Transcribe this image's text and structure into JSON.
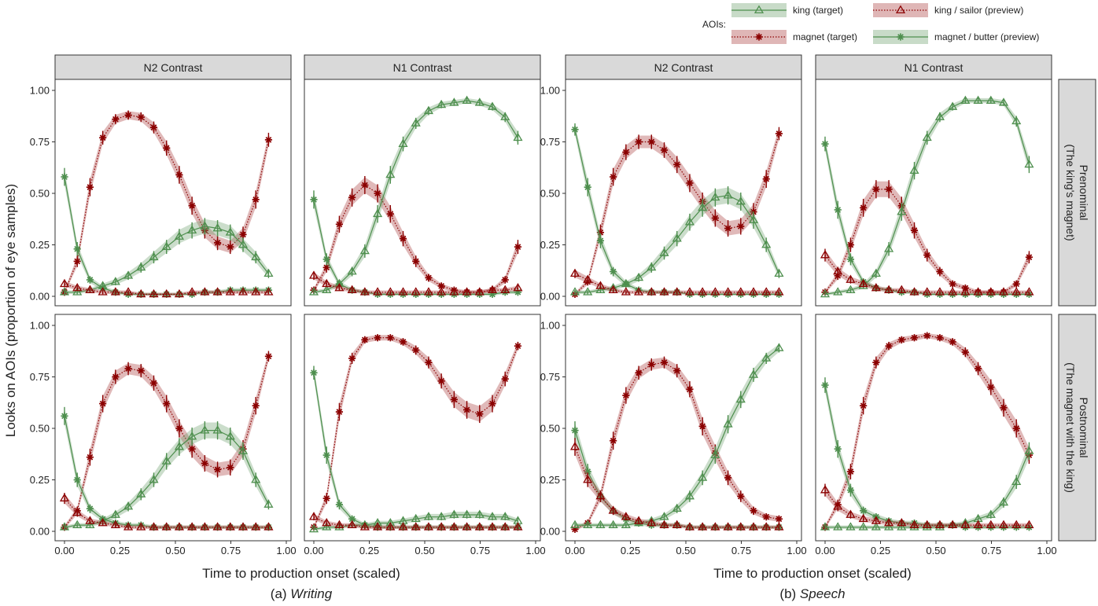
{
  "legend": {
    "title": "AOIs:",
    "items": [
      {
        "label": "king (target)",
        "color": "#4E8F4E",
        "marker": "triangle",
        "linestyle": "solid"
      },
      {
        "label": "king / sailor (preview)",
        "color": "#8B0000",
        "marker": "triangle",
        "linestyle": "dotted"
      },
      {
        "label": "magnet (target)",
        "color": "#8B0000",
        "marker": "asterisk",
        "linestyle": "dotted"
      },
      {
        "label": "magnet / butter (preview)",
        "color": "#4E8F4E",
        "marker": "asterisk",
        "linestyle": "solid"
      }
    ]
  },
  "col_strips": [
    "N2 Contrast",
    "N1 Contrast",
    "N2 Contrast",
    "N1 Contrast"
  ],
  "row_strips": [
    [
      "Prenominal",
      "(The king's magnet)"
    ],
    [
      "Postnominal",
      "(The magnet with the king)"
    ]
  ],
  "y_axis_label": "Looks on AOIs (proportion of eye samples)",
  "x_axis_label": "Time to production onset (scaled)",
  "x_ticks": [
    "0.00",
    "0.25",
    "0.50",
    "0.75",
    "1.00"
  ],
  "y_ticks": [
    "0.00",
    "0.25",
    "0.50",
    "0.75",
    "1.00"
  ],
  "captions": [
    {
      "prefix": "(a) ",
      "name": "Writing"
    },
    {
      "prefix": "(b) ",
      "name": "Speech"
    }
  ],
  "chart_data": {
    "type": "line",
    "xlim": [
      0,
      1
    ],
    "ylim": [
      0,
      1
    ],
    "grid": false,
    "legend_position": "top-right",
    "x": [
      0,
      0.0575,
      0.115,
      0.1725,
      0.23,
      0.2875,
      0.345,
      0.4025,
      0.46,
      0.5175,
      0.575,
      0.6325,
      0.69,
      0.7475,
      0.805,
      0.8625,
      0.92
    ],
    "panels": [
      {
        "group": "Writing",
        "row": "Prenominal",
        "col": "N2 Contrast",
        "series": [
          {
            "name": "king (target)",
            "values": [
              0.02,
              0.02,
              0.03,
              0.05,
              0.07,
              0.1,
              0.14,
              0.19,
              0.24,
              0.29,
              0.32,
              0.34,
              0.33,
              0.31,
              0.25,
              0.19,
              0.11
            ]
          },
          {
            "name": "king / sailor (preview)",
            "values": [
              0.06,
              0.04,
              0.03,
              0.02,
              0.02,
              0.02,
              0.01,
              0.01,
              0.01,
              0.01,
              0.02,
              0.02,
              0.02,
              0.02,
              0.02,
              0.02,
              0.02
            ]
          },
          {
            "name": "magnet (target)",
            "values": [
              0.02,
              0.17,
              0.53,
              0.77,
              0.86,
              0.88,
              0.87,
              0.82,
              0.72,
              0.59,
              0.44,
              0.32,
              0.26,
              0.24,
              0.3,
              0.47,
              0.76
            ]
          },
          {
            "name": "magnet / butter (preview)",
            "values": [
              0.58,
              0.23,
              0.08,
              0.04,
              0.02,
              0.01,
              0.01,
              0.01,
              0.01,
              0.01,
              0.01,
              0.02,
              0.02,
              0.03,
              0.03,
              0.03,
              0.03
            ]
          }
        ]
      },
      {
        "group": "Writing",
        "row": "Prenominal",
        "col": "N1 Contrast",
        "series": [
          {
            "name": "king (target)",
            "values": [
              0.02,
              0.03,
              0.06,
              0.12,
              0.22,
              0.4,
              0.59,
              0.74,
              0.84,
              0.9,
              0.93,
              0.94,
              0.95,
              0.94,
              0.92,
              0.87,
              0.77
            ]
          },
          {
            "name": "king / sailor (preview)",
            "values": [
              0.1,
              0.06,
              0.04,
              0.03,
              0.02,
              0.02,
              0.02,
              0.02,
              0.02,
              0.02,
              0.02,
              0.02,
              0.02,
              0.02,
              0.03,
              0.03,
              0.04
            ]
          },
          {
            "name": "magnet (target)",
            "values": [
              0.03,
              0.14,
              0.35,
              0.48,
              0.54,
              0.5,
              0.4,
              0.28,
              0.17,
              0.09,
              0.05,
              0.03,
              0.02,
              0.02,
              0.03,
              0.08,
              0.24
            ]
          },
          {
            "name": "magnet / butter (preview)",
            "values": [
              0.47,
              0.18,
              0.06,
              0.03,
              0.02,
              0.01,
              0.01,
              0.01,
              0.01,
              0.01,
              0.01,
              0.01,
              0.01,
              0.01,
              0.01,
              0.02,
              0.02
            ]
          }
        ]
      },
      {
        "group": "Speech",
        "row": "Prenominal",
        "col": "N2 Contrast",
        "series": [
          {
            "name": "king (target)",
            "values": [
              0.02,
              0.02,
              0.03,
              0.04,
              0.06,
              0.09,
              0.14,
              0.21,
              0.28,
              0.36,
              0.43,
              0.48,
              0.49,
              0.46,
              0.37,
              0.25,
              0.11
            ]
          },
          {
            "name": "king / sailor (preview)",
            "values": [
              0.11,
              0.08,
              0.05,
              0.03,
              0.02,
              0.02,
              0.02,
              0.02,
              0.02,
              0.02,
              0.02,
              0.02,
              0.02,
              0.02,
              0.02,
              0.02,
              0.02
            ]
          },
          {
            "name": "magnet (target)",
            "values": [
              0.01,
              0.07,
              0.31,
              0.58,
              0.7,
              0.75,
              0.75,
              0.71,
              0.64,
              0.55,
              0.46,
              0.38,
              0.33,
              0.34,
              0.41,
              0.57,
              0.79
            ]
          },
          {
            "name": "magnet / butter (preview)",
            "values": [
              0.81,
              0.53,
              0.27,
              0.12,
              0.06,
              0.03,
              0.02,
              0.02,
              0.02,
              0.01,
              0.01,
              0.01,
              0.01,
              0.01,
              0.01,
              0.01,
              0.01
            ]
          }
        ]
      },
      {
        "group": "Speech",
        "row": "Prenominal",
        "col": "N1 Contrast",
        "series": [
          {
            "name": "king (target)",
            "values": [
              0.01,
              0.02,
              0.03,
              0.05,
              0.11,
              0.23,
              0.41,
              0.61,
              0.77,
              0.87,
              0.92,
              0.95,
              0.95,
              0.95,
              0.94,
              0.85,
              0.64
            ]
          },
          {
            "name": "king / sailor (preview)",
            "values": [
              0.2,
              0.12,
              0.08,
              0.06,
              0.04,
              0.03,
              0.03,
              0.02,
              0.02,
              0.02,
              0.02,
              0.02,
              0.02,
              0.02,
              0.02,
              0.02,
              0.02
            ]
          },
          {
            "name": "magnet (target)",
            "values": [
              0.02,
              0.1,
              0.25,
              0.43,
              0.52,
              0.52,
              0.44,
              0.32,
              0.2,
              0.12,
              0.06,
              0.04,
              0.02,
              0.02,
              0.02,
              0.06,
              0.19
            ]
          },
          {
            "name": "magnet / butter (preview)",
            "values": [
              0.74,
              0.42,
              0.18,
              0.07,
              0.04,
              0.03,
              0.02,
              0.02,
              0.01,
              0.01,
              0.01,
              0.01,
              0.01,
              0.01,
              0.01,
              0.01,
              0.01
            ]
          }
        ]
      },
      {
        "group": "Writing",
        "row": "Postnominal",
        "col": "N2 Contrast",
        "series": [
          {
            "name": "king (target)",
            "values": [
              0.02,
              0.03,
              0.03,
              0.05,
              0.08,
              0.12,
              0.18,
              0.25,
              0.34,
              0.41,
              0.46,
              0.49,
              0.49,
              0.46,
              0.39,
              0.25,
              0.13
            ]
          },
          {
            "name": "king / sailor (preview)",
            "values": [
              0.16,
              0.09,
              0.05,
              0.04,
              0.03,
              0.02,
              0.02,
              0.02,
              0.02,
              0.02,
              0.02,
              0.02,
              0.02,
              0.02,
              0.02,
              0.02,
              0.02
            ]
          },
          {
            "name": "magnet (target)",
            "values": [
              0.02,
              0.1,
              0.36,
              0.62,
              0.75,
              0.79,
              0.78,
              0.72,
              0.62,
              0.5,
              0.4,
              0.33,
              0.3,
              0.31,
              0.4,
              0.61,
              0.85
            ]
          },
          {
            "name": "magnet / butter (preview)",
            "values": [
              0.56,
              0.25,
              0.11,
              0.06,
              0.04,
              0.03,
              0.03,
              0.02,
              0.02,
              0.02,
              0.02,
              0.02,
              0.02,
              0.02,
              0.02,
              0.02,
              0.02
            ]
          }
        ]
      },
      {
        "group": "Writing",
        "row": "Postnominal",
        "col": "N1 Contrast",
        "series": [
          {
            "name": "king (target)",
            "values": [
              0.01,
              0.02,
              0.02,
              0.03,
              0.03,
              0.04,
              0.04,
              0.05,
              0.06,
              0.07,
              0.07,
              0.08,
              0.08,
              0.08,
              0.07,
              0.07,
              0.05
            ]
          },
          {
            "name": "king / sailor (preview)",
            "values": [
              0.07,
              0.04,
              0.03,
              0.03,
              0.02,
              0.02,
              0.02,
              0.02,
              0.02,
              0.02,
              0.02,
              0.02,
              0.02,
              0.02,
              0.02,
              0.02,
              0.02
            ]
          },
          {
            "name": "magnet (target)",
            "values": [
              0.02,
              0.16,
              0.58,
              0.84,
              0.93,
              0.94,
              0.94,
              0.92,
              0.88,
              0.82,
              0.73,
              0.64,
              0.59,
              0.57,
              0.62,
              0.74,
              0.9
            ]
          },
          {
            "name": "magnet / butter (preview)",
            "values": [
              0.77,
              0.37,
              0.13,
              0.06,
              0.03,
              0.02,
              0.02,
              0.02,
              0.02,
              0.02,
              0.02,
              0.02,
              0.02,
              0.02,
              0.02,
              0.02,
              0.02
            ]
          }
        ]
      },
      {
        "group": "Speech",
        "row": "Postnominal",
        "col": "N2 Contrast",
        "series": [
          {
            "name": "king (target)",
            "values": [
              0.03,
              0.03,
              0.03,
              0.03,
              0.03,
              0.04,
              0.05,
              0.07,
              0.11,
              0.17,
              0.26,
              0.37,
              0.52,
              0.64,
              0.76,
              0.84,
              0.89
            ]
          },
          {
            "name": "king / sailor (preview)",
            "values": [
              0.41,
              0.25,
              0.17,
              0.1,
              0.07,
              0.05,
              0.04,
              0.03,
              0.03,
              0.02,
              0.02,
              0.02,
              0.02,
              0.02,
              0.02,
              0.02,
              0.02
            ]
          },
          {
            "name": "magnet (target)",
            "values": [
              0.01,
              0.04,
              0.17,
              0.44,
              0.66,
              0.77,
              0.81,
              0.82,
              0.78,
              0.69,
              0.51,
              0.38,
              0.26,
              0.17,
              0.1,
              0.07,
              0.06
            ]
          },
          {
            "name": "magnet / butter (preview)",
            "values": [
              0.49,
              0.29,
              0.17,
              0.1,
              0.06,
              0.04,
              0.03,
              0.03,
              0.03,
              0.02,
              0.02,
              0.02,
              0.02,
              0.02,
              0.02,
              0.02,
              0.02
            ]
          }
        ]
      },
      {
        "group": "Speech",
        "row": "Postnominal",
        "col": "N1 Contrast",
        "series": [
          {
            "name": "king (target)",
            "values": [
              0.02,
              0.02,
              0.02,
              0.02,
              0.02,
              0.02,
              0.02,
              0.02,
              0.02,
              0.02,
              0.03,
              0.04,
              0.06,
              0.08,
              0.14,
              0.24,
              0.39
            ]
          },
          {
            "name": "king / sailor (preview)",
            "values": [
              0.2,
              0.12,
              0.08,
              0.06,
              0.05,
              0.04,
              0.04,
              0.03,
              0.03,
              0.03,
              0.03,
              0.03,
              0.03,
              0.03,
              0.03,
              0.03,
              0.03
            ]
          },
          {
            "name": "magnet (target)",
            "values": [
              0.02,
              0.13,
              0.29,
              0.61,
              0.82,
              0.9,
              0.93,
              0.94,
              0.95,
              0.94,
              0.92,
              0.87,
              0.79,
              0.7,
              0.6,
              0.5,
              0.37
            ]
          },
          {
            "name": "magnet / butter (preview)",
            "values": [
              0.71,
              0.4,
              0.2,
              0.1,
              0.07,
              0.05,
              0.04,
              0.04,
              0.03,
              0.03,
              0.03,
              0.02,
              0.02,
              0.02,
              0.02,
              0.02,
              0.02
            ]
          }
        ]
      }
    ]
  }
}
